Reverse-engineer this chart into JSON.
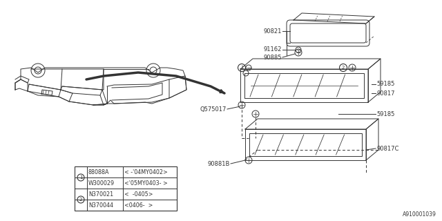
{
  "bg_color": "#ffffff",
  "diagram_id": "A910001039",
  "dark": "#333333",
  "lw": 0.7,
  "table_data": {
    "row1_part1": "88088A",
    "row1_note1": "< -'04MY0402>",
    "row1_part2": "W300029",
    "row1_note2": "<'05MY0403- >",
    "row2_part1": "N370021",
    "row2_note1": "<  -0405>",
    "row2_part2": "N370044",
    "row2_note2": "<0406-  >"
  }
}
